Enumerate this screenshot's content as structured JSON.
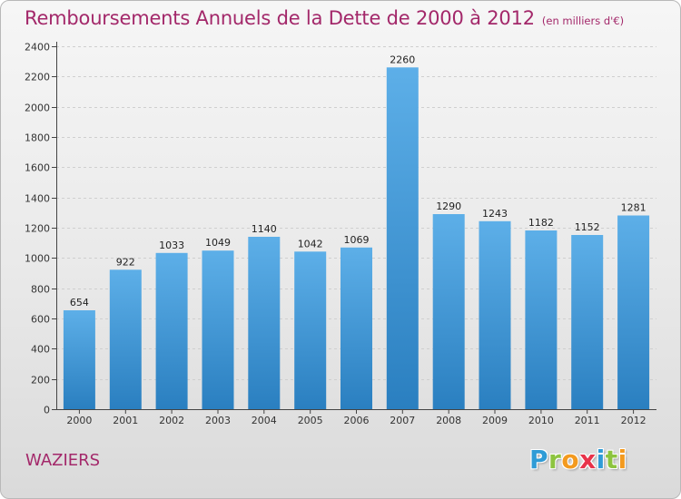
{
  "header": {
    "title": "Remboursements Annuels de la Dette de 2000 à 2012",
    "subtitle": "(en milliers d'€)"
  },
  "commune": "WAZIERS",
  "logo": {
    "text": "Proxiti",
    "letters": [
      {
        "ch": "P",
        "color": "#2f9bd6"
      },
      {
        "ch": "r",
        "color": "#8dc43f"
      },
      {
        "ch": "o",
        "color": "#f39a1f"
      },
      {
        "ch": "x",
        "color": "#e8334a"
      },
      {
        "ch": "i",
        "color": "#2f9bd6"
      },
      {
        "ch": "t",
        "color": "#8dc43f"
      },
      {
        "ch": "i",
        "color": "#f39a1f"
      }
    ]
  },
  "colors": {
    "bar_top": "#5dafe8",
    "bar_bottom": "#2a7fc0",
    "title": "#a3286a",
    "axis": "#444444",
    "grid": "#cfcfcf"
  },
  "chart_data": {
    "type": "bar",
    "categories": [
      "2000",
      "2001",
      "2002",
      "2003",
      "2004",
      "2005",
      "2006",
      "2007",
      "2008",
      "2009",
      "2010",
      "2011",
      "2012"
    ],
    "values": [
      654,
      922,
      1033,
      1049,
      1140,
      1042,
      1069,
      2260,
      1290,
      1243,
      1182,
      1152,
      1281
    ],
    "ylim": [
      0,
      2400
    ],
    "yticks": [
      0,
      200,
      400,
      600,
      800,
      1000,
      1200,
      1400,
      1600,
      1800,
      2000,
      2200,
      2400
    ],
    "grid": true,
    "data_labels": true
  }
}
